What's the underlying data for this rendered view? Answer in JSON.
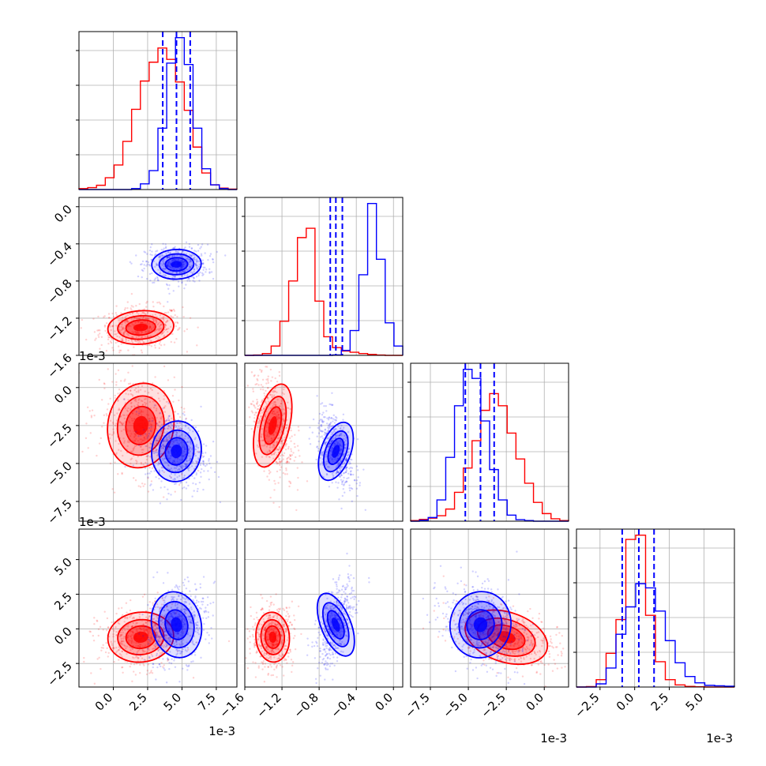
{
  "colors": {
    "red": "#ff0000",
    "blue": "#0000ff",
    "grid": "#b0b0b0",
    "axis": "#000000"
  },
  "chart_data": {
    "type": "corner",
    "grid": true,
    "scale_offset_text": "1e-3",
    "parameters": [
      {
        "range": [
          -2.5,
          9.0
        ],
        "ticks": [
          0.0,
          2.5,
          5.0,
          7.5
        ],
        "tick_labels": [
          "0.0",
          "2.5",
          "5.0",
          "7.5"
        ]
      },
      {
        "range": [
          -1.6,
          0.1
        ],
        "ticks": [
          -1.6,
          -1.2,
          -0.8,
          -0.4,
          0.0
        ],
        "tick_labels": [
          "−1.6",
          "−1.2",
          "−0.8",
          "−0.4",
          "0.0"
        ]
      },
      {
        "range": [
          -8.8,
          1.6
        ],
        "ticks": [
          -7.5,
          -5.0,
          -2.5,
          0.0
        ],
        "tick_labels": [
          "−7.5",
          "−5.0",
          "−2.5",
          "0.0"
        ]
      },
      {
        "range": [
          -4.2,
          7.2
        ],
        "ticks": [
          -2.5,
          0.0,
          2.5,
          5.0
        ],
        "tick_labels": [
          "−2.5",
          "0.0",
          "2.5",
          "5.0"
        ]
      }
    ],
    "series": [
      {
        "color": "red",
        "mean": [
          2.0,
          -1.3,
          -2.5,
          -0.6
        ],
        "sd": [
          1.2,
          0.09,
          1.4,
          0.9
        ]
      },
      {
        "color": "blue",
        "mean": [
          4.6,
          -0.62,
          -4.2,
          0.3
        ],
        "sd": [
          0.9,
          0.08,
          1.0,
          1.2
        ]
      }
    ],
    "blue_quantiles": [
      [
        3.6,
        4.6,
        5.6
      ],
      [
        -0.68,
        -0.62,
        -0.55
      ],
      [
        -5.2,
        -4.2,
        -3.3
      ],
      [
        -0.9,
        0.3,
        1.4
      ]
    ],
    "histograms": [
      {
        "param": 0,
        "red_counts": [
          2,
          4,
          9,
          25,
          52,
          102,
          170,
          230,
          270,
          300,
          276,
          228,
          168,
          90,
          35,
          10,
          3,
          1
        ],
        "blue_counts": [
          0,
          0,
          0,
          0,
          0,
          0,
          2,
          12,
          40,
          130,
          268,
          322,
          265,
          130,
          44,
          10,
          2,
          0
        ]
      },
      {
        "param": 1,
        "red_counts": [
          0,
          2,
          12,
          60,
          220,
          480,
          760,
          820,
          350,
          120,
          50,
          28,
          20,
          12,
          6,
          2,
          0,
          0
        ],
        "blue_counts": [
          0,
          0,
          0,
          0,
          0,
          0,
          0,
          0,
          0,
          0,
          3,
          32,
          160,
          520,
          980,
          620,
          210,
          60
        ]
      },
      {
        "param": 2,
        "red_counts": [
          2,
          6,
          10,
          18,
          40,
          95,
          175,
          265,
          365,
          420,
          380,
          290,
          205,
          125,
          62,
          25,
          8,
          2
        ],
        "blue_counts": [
          0,
          3,
          12,
          70,
          210,
          380,
          500,
          470,
          330,
          170,
          70,
          20,
          5,
          2,
          0,
          0,
          0,
          0
        ]
      },
      {
        "param": 3,
        "red_counts": [
          0,
          2,
          35,
          160,
          320,
          700,
          720,
          340,
          120,
          35,
          10,
          3,
          1,
          0,
          0,
          0
        ],
        "blue_counts": [
          0,
          0,
          15,
          90,
          250,
          380,
          490,
          470,
          360,
          220,
          115,
          50,
          20,
          8,
          6,
          4
        ]
      }
    ]
  }
}
